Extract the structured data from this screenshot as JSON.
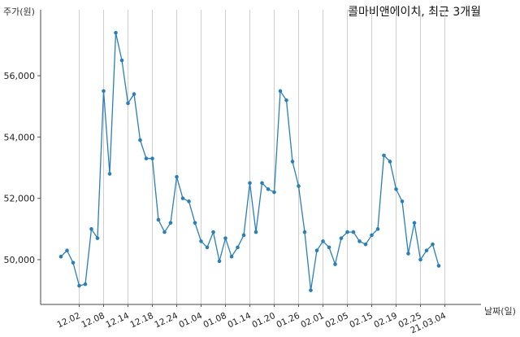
{
  "chart_data": {
    "type": "line",
    "title": "콜마비앤에이치, 최근 3개월",
    "ylabel": "주가(원)",
    "xlabel": "날짜(일)",
    "ylim": [
      48600,
      57800
    ],
    "yticks": [
      50000,
      52000,
      54000,
      56000
    ],
    "ytick_labels": [
      "50,000",
      "52,000",
      "54,000",
      "56,000"
    ],
    "xtick_labels": [
      "12.02",
      "12.08",
      "12.14",
      "12.18",
      "12.24",
      "01.04",
      "01.08",
      "01.14",
      "01.20",
      "01.26",
      "02.01",
      "02.05",
      "02.15",
      "02.19",
      "02.25",
      "21.03.04"
    ],
    "xtick_indices": [
      3,
      7,
      11,
      15,
      19,
      23,
      27,
      31,
      35,
      39,
      43,
      47,
      51,
      55,
      59,
      63
    ],
    "grid": "vertical",
    "color": "#2b7fb8",
    "series": [
      {
        "values": [
          50100,
          50300,
          49900,
          49150,
          49200,
          51000,
          50700,
          55500,
          52800,
          57400,
          56500,
          55100,
          55400,
          53900,
          53300,
          53300,
          51300,
          50900,
          51200,
          52700,
          52000,
          51900,
          51200,
          50600,
          50400,
          50900,
          49950,
          50700,
          50100,
          50400,
          50800,
          52500,
          50900,
          52500,
          52300,
          52200,
          55500,
          55200,
          53200,
          52400,
          50900,
          49000,
          50300,
          50600,
          50400,
          49850,
          50700,
          50900,
          50900,
          50600,
          50500,
          50800,
          51000,
          53400,
          53200,
          52300,
          51900,
          50200,
          51200,
          50000,
          50300,
          50500,
          49800
        ]
      }
    ]
  }
}
